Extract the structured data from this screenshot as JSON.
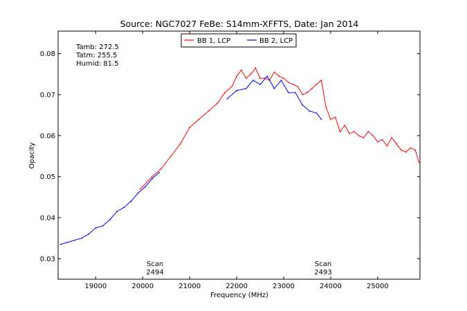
{
  "chart_data": {
    "type": "line",
    "title": "Source: NGC7027 FeBe: S14mm-XFFTS, Date: Jan 2014",
    "xlabel": "Frequency (MHz)",
    "ylabel": "Opacity",
    "xlim": [
      18200,
      25900
    ],
    "ylim": [
      0.025,
      0.0855
    ],
    "xticks": [
      19000,
      20000,
      21000,
      22000,
      23000,
      24000,
      25000
    ],
    "yticks": [
      0.03,
      0.04,
      0.05,
      0.06,
      0.07,
      0.08
    ],
    "xtick_labels": [
      "19000",
      "20000",
      "21000",
      "22000",
      "23000",
      "24000",
      "25000"
    ],
    "ytick_labels": [
      "0.03",
      "0.04",
      "0.05",
      "0.06",
      "0.07",
      "0.08"
    ],
    "grid": false,
    "legend_position": "top-center",
    "weather_text": [
      "Tamb: 272.5",
      "Tatm: 255.5",
      "Humid: 81.5"
    ],
    "annotations": [
      {
        "line1": "Scan",
        "line2": "2494",
        "x": 20200
      },
      {
        "line1": "Scan",
        "line2": "2493",
        "x": 23800
      }
    ],
    "series": [
      {
        "name": "BB 1, LCP",
        "color": "#ff0000",
        "x": [
          19950,
          20200,
          20400,
          20600,
          20800,
          21000,
          21200,
          21400,
          21600,
          21750,
          21900,
          22000,
          22100,
          22200,
          22300,
          22400,
          22500,
          22600,
          22700,
          22800,
          22900,
          23000,
          23100,
          23200,
          23300,
          23400,
          23500,
          23600,
          23700,
          23800,
          23900,
          24000,
          24100,
          24200,
          24300,
          24400,
          24500,
          24600,
          24700,
          24800,
          24900,
          25000,
          25100,
          25200,
          25300,
          25400,
          25500,
          25600,
          25700,
          25800,
          25880
        ],
        "y": [
          0.047,
          0.05,
          0.052,
          0.055,
          0.058,
          0.062,
          0.064,
          0.066,
          0.068,
          0.0705,
          0.072,
          0.0745,
          0.076,
          0.074,
          0.075,
          0.0765,
          0.074,
          0.074,
          0.0735,
          0.0755,
          0.0745,
          0.074,
          0.073,
          0.0725,
          0.072,
          0.07,
          0.0705,
          0.0715,
          0.0725,
          0.0735,
          0.067,
          0.064,
          0.0645,
          0.061,
          0.0625,
          0.0605,
          0.061,
          0.06,
          0.0595,
          0.061,
          0.06,
          0.0585,
          0.059,
          0.0575,
          0.0595,
          0.058,
          0.0565,
          0.056,
          0.057,
          0.0565,
          0.0535
        ]
      },
      {
        "name": "BB 2, LCP",
        "color": "#0000ff",
        "x": [
          18250,
          18400,
          18550,
          18700,
          18850,
          19000,
          19150,
          19300,
          19450,
          19600,
          19750,
          19900,
          20050,
          20200,
          20350,
          21800,
          22000,
          22200,
          22350,
          22500,
          22650,
          22800,
          22950,
          23100,
          23250,
          23400,
          23550,
          23700,
          23800
        ],
        "y": [
          0.0335,
          0.034,
          0.0345,
          0.035,
          0.036,
          0.0375,
          0.038,
          0.0395,
          0.0415,
          0.0425,
          0.044,
          0.046,
          0.0475,
          0.0495,
          0.051,
          0.069,
          0.071,
          0.0715,
          0.0735,
          0.0725,
          0.0745,
          0.0715,
          0.0735,
          0.0705,
          0.0705,
          0.0675,
          0.066,
          0.0655,
          0.064
        ]
      }
    ]
  }
}
